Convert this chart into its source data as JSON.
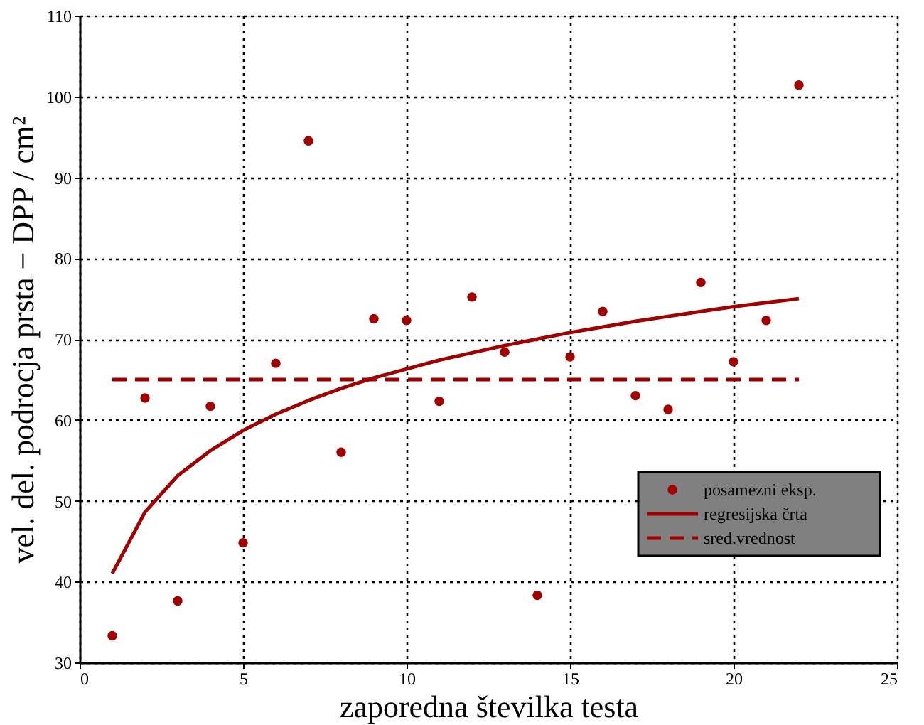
{
  "chart_data": {
    "type": "scatter",
    "xlabel": "zaporedna številka testa",
    "ylabel": "vel. del. podrocja prsta − DPP / cm²",
    "xlim": [
      0,
      25
    ],
    "xticks": [
      0,
      5,
      10,
      15,
      20,
      25
    ],
    "ylim": [
      30,
      110
    ],
    "yticks": [
      30,
      40,
      50,
      60,
      70,
      80,
      90,
      100,
      110
    ],
    "grid": true,
    "legend": "bottom right",
    "series": [
      {
        "name": "posamezni eksp.",
        "marker": "circle",
        "color": "#a00000",
        "x": [
          1,
          2,
          3,
          4,
          5,
          6,
          7,
          8,
          9,
          10,
          11,
          12,
          13,
          14,
          15,
          16,
          17,
          18,
          19,
          20,
          21,
          22
        ],
        "values": [
          33.3,
          62.7,
          37.6,
          61.7,
          44.8,
          67.0,
          94.5,
          56.0,
          72.5,
          72.3,
          62.3,
          75.2,
          68.4,
          38.3,
          67.8,
          73.4,
          63.0,
          61.3,
          77.0,
          67.2,
          72.3,
          101.4
        ]
      },
      {
        "name": "regresijska črta",
        "type": "line",
        "line_style": "solid",
        "color": "#a00000",
        "x": [
          1,
          2,
          3,
          4,
          5,
          6,
          7,
          8,
          9,
          10,
          11,
          12,
          13,
          14,
          15,
          16,
          17,
          18,
          19,
          20,
          21,
          22
        ],
        "values": [
          41.0,
          48.6,
          53.1,
          56.2,
          58.7,
          60.7,
          62.4,
          63.9,
          65.2,
          66.3,
          67.4,
          68.3,
          69.2,
          70.0,
          70.8,
          71.5,
          72.2,
          72.8,
          73.4,
          74.0,
          74.5,
          75.0
        ]
      },
      {
        "name": "sred.vrednost",
        "type": "line",
        "line_style": "dashed",
        "color": "#a00000",
        "x": [
          1,
          22
        ],
        "values": [
          65,
          65
        ]
      }
    ]
  }
}
